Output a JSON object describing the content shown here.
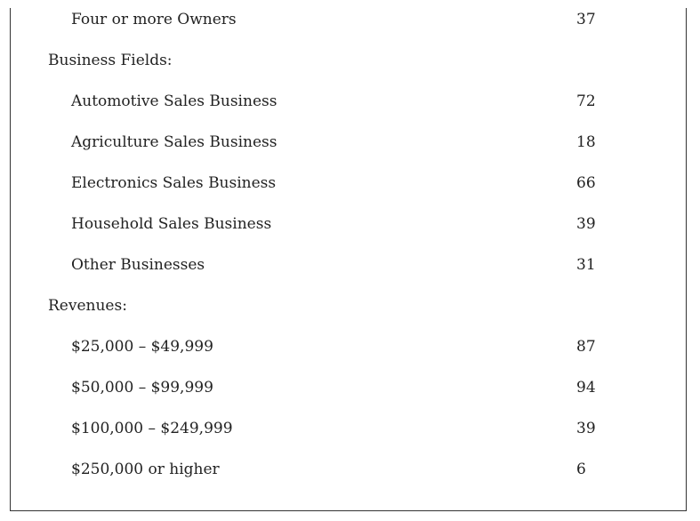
{
  "rows": [
    {
      "label": "Four or more Owners",
      "value": "37",
      "type": "item"
    },
    {
      "label": "Business Fields:",
      "value": "",
      "type": "section"
    },
    {
      "label": "Automotive Sales Business",
      "value": "72",
      "type": "item"
    },
    {
      "label": "Agriculture Sales Business",
      "value": "18",
      "type": "item"
    },
    {
      "label": "Electronics Sales Business",
      "value": "66",
      "type": "item"
    },
    {
      "label": "Household Sales Business",
      "value": "39",
      "type": "item"
    },
    {
      "label": "Other Businesses",
      "value": "31",
      "type": "item"
    },
    {
      "label": "Revenues:",
      "value": "",
      "type": "section"
    },
    {
      "label": "$25,000 – $49,999",
      "value": "87",
      "type": "item"
    },
    {
      "label": "$50,000 – $99,999",
      "value": "94",
      "type": "item"
    },
    {
      "label": "$100,000 – $249,999",
      "value": "39",
      "type": "item"
    },
    {
      "label": "$250,000 or higher",
      "value": "6",
      "type": "item"
    }
  ]
}
